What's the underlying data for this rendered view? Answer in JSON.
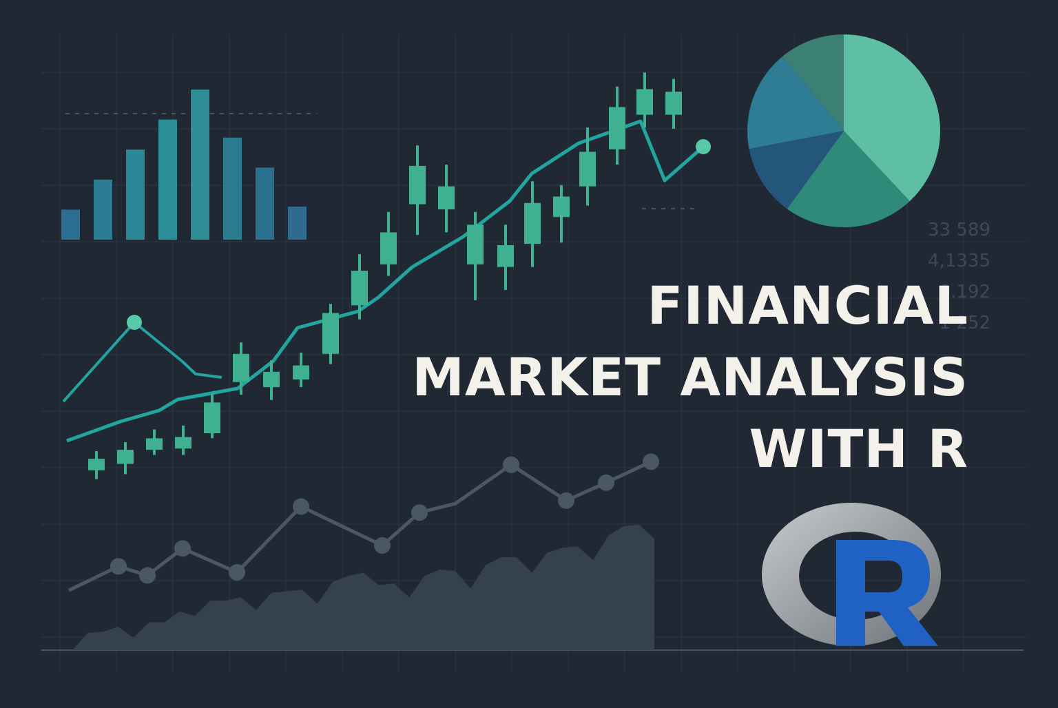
{
  "title": {
    "line1": "FINANCIAL",
    "line2": "MARKET ANALYSIS",
    "line3": "WITH R"
  },
  "ticker_values": [
    "33 589",
    "4,1335",
    "0.192",
    "1 252"
  ],
  "logo": {
    "letter": "R",
    "ring_color": "#9a9ea3",
    "letter_color": "#1f62c4"
  },
  "colors": {
    "background": "#1f2833",
    "grid": "#2c3743",
    "teal_line": "#22a4a0",
    "bar_blue": "#2f6f8f",
    "candle_green": "#3fb191",
    "candle_blue": "#3288a6",
    "muted_line": "#4a5866",
    "area": "#35414d"
  },
  "chart_data": [
    {
      "type": "bar",
      "values": [
        1,
        2,
        3,
        4,
        5,
        3.4,
        2.4,
        1.1
      ]
    },
    {
      "type": "candlestick",
      "candles": [
        {
          "o": 2.0,
          "c": 2.9,
          "h": 3.5,
          "l": 1.3
        },
        {
          "o": 2.5,
          "c": 3.6,
          "h": 4.2,
          "l": 1.7
        },
        {
          "o": 3.6,
          "c": 4.5,
          "h": 5.2,
          "l": 3.2
        },
        {
          "o": 3.7,
          "c": 4.6,
          "h": 5.5,
          "l": 3.2
        },
        {
          "o": 4.9,
          "c": 7.3,
          "h": 8.0,
          "l": 4.5
        },
        {
          "o": 8.9,
          "c": 11.1,
          "h": 12.0,
          "l": 7.9
        },
        {
          "o": 8.5,
          "c": 9.7,
          "h": 10.6,
          "l": 7.5
        },
        {
          "o": 9.1,
          "c": 10.2,
          "h": 11.2,
          "l": 8.5
        },
        {
          "o": 11.1,
          "c": 14.3,
          "h": 15.0,
          "l": 10.3
        },
        {
          "o": 14.9,
          "c": 17.6,
          "h": 18.9,
          "l": 13.8
        },
        {
          "o": 18.1,
          "c": 20.6,
          "h": 22.2,
          "l": 17.2
        },
        {
          "o": 22.8,
          "c": 25.8,
          "h": 27.4,
          "l": 20.4
        },
        {
          "o": 22.4,
          "c": 24.2,
          "h": 25.9,
          "l": 20.6
        },
        {
          "o": 18.1,
          "c": 21.2,
          "h": 22.2,
          "l": 15.3
        },
        {
          "o": 17.9,
          "c": 19.6,
          "h": 21.2,
          "l": 16.1
        },
        {
          "o": 19.7,
          "c": 22.9,
          "h": 24.6,
          "l": 17.9
        },
        {
          "o": 21.8,
          "c": 23.4,
          "h": 24.3,
          "l": 19.8
        },
        {
          "o": 24.2,
          "c": 26.9,
          "h": 28.8,
          "l": 22.7
        },
        {
          "o": 27.1,
          "c": 30.4,
          "h": 32.0,
          "l": 25.9
        },
        {
          "o": 29.8,
          "c": 31.8,
          "h": 33.1,
          "l": 28.8
        },
        {
          "o": 29.8,
          "c": 31.6,
          "h": 32.6,
          "l": 28.7
        }
      ]
    },
    {
      "type": "line",
      "series": [
        {
          "values": [
            7.6,
            8.3,
            8.7,
            9.1,
            9.5,
            10.5,
            11.7,
            12.3,
            12.8,
            13.9,
            15.0,
            16.3,
            17.3,
            18.4,
            19.2
          ]
        }
      ]
    },
    {
      "type": "line",
      "series": [
        {
          "values": [
            3.2,
            4.6,
            6.3,
            5.4,
            5.8
          ]
        }
      ]
    },
    {
      "type": "line",
      "series": [
        {
          "values": [
            2.0,
            2.8,
            2.5,
            3.4,
            2.6,
            4.8,
            3.5,
            4.6,
            4.9,
            6.2,
            5.0,
            5.6,
            6.3
          ]
        }
      ]
    },
    {
      "type": "area",
      "series": [
        {
          "values": [
            0,
            0.6,
            0.4,
            0.9,
            1.1,
            1.6,
            1.3,
            1.9,
            1.5,
            2.4,
            2.1,
            1.7,
            2.6,
            2.0,
            3.0,
            2.5,
            3.3,
            2.9,
            4.0,
            3.6
          ]
        }
      ]
    },
    {
      "type": "pie",
      "values": [
        38,
        22,
        12,
        17,
        11
      ]
    }
  ]
}
